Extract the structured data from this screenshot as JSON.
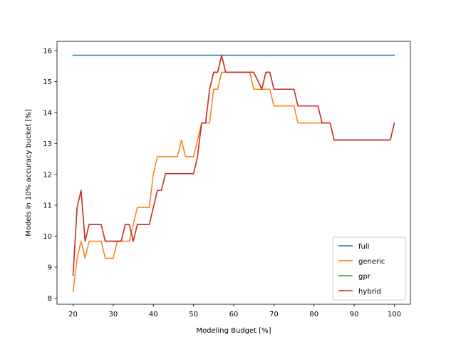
{
  "chart_data": {
    "type": "line",
    "title": "",
    "xlabel": "Modeling Budget [%]",
    "ylabel": "Models in 10% accuracy bucket [%]",
    "xlim": [
      16,
      104
    ],
    "ylim": [
      7.8,
      16.3
    ],
    "xticks": [
      20,
      30,
      40,
      50,
      60,
      70,
      80,
      90,
      100
    ],
    "yticks": [
      8,
      9,
      10,
      11,
      12,
      13,
      14,
      15,
      16
    ],
    "grid": false,
    "legend_position": "bottom-right",
    "x": [
      20,
      21,
      22,
      23,
      24,
      25,
      26,
      27,
      28,
      29,
      30,
      31,
      32,
      33,
      34,
      35,
      36,
      37,
      38,
      39,
      40,
      41,
      42,
      43,
      44,
      45,
      46,
      47,
      48,
      49,
      50,
      51,
      52,
      53,
      54,
      55,
      56,
      57,
      58,
      59,
      60,
      61,
      62,
      63,
      64,
      65,
      66,
      67,
      68,
      69,
      70,
      71,
      72,
      73,
      74,
      75,
      76,
      77,
      78,
      79,
      80,
      81,
      82,
      83,
      84,
      85,
      86,
      87,
      88,
      89,
      90,
      91,
      92,
      93,
      94,
      95,
      96,
      97,
      98,
      99,
      100
    ],
    "series": [
      {
        "name": "full",
        "color": "#1f77b4",
        "values": [
          15.85,
          15.85,
          15.85,
          15.85,
          15.85,
          15.85,
          15.85,
          15.85,
          15.85,
          15.85,
          15.85,
          15.85,
          15.85,
          15.85,
          15.85,
          15.85,
          15.85,
          15.85,
          15.85,
          15.85,
          15.85,
          15.85,
          15.85,
          15.85,
          15.85,
          15.85,
          15.85,
          15.85,
          15.85,
          15.85,
          15.85,
          15.85,
          15.85,
          15.85,
          15.85,
          15.85,
          15.85,
          15.85,
          15.85,
          15.85,
          15.85,
          15.85,
          15.85,
          15.85,
          15.85,
          15.85,
          15.85,
          15.85,
          15.85,
          15.85,
          15.85,
          15.85,
          15.85,
          15.85,
          15.85,
          15.85,
          15.85,
          15.85,
          15.85,
          15.85,
          15.85,
          15.85,
          15.85,
          15.85,
          15.85,
          15.85,
          15.85,
          15.85,
          15.85,
          15.85,
          15.85,
          15.85,
          15.85,
          15.85,
          15.85,
          15.85,
          15.85,
          15.85,
          15.85,
          15.85,
          15.85
        ]
      },
      {
        "name": "generic",
        "color": "#ff7f0e",
        "values": [
          8.2,
          9.29,
          9.84,
          9.29,
          9.84,
          9.84,
          9.84,
          9.84,
          9.29,
          9.29,
          9.29,
          9.84,
          9.84,
          9.84,
          9.84,
          10.38,
          10.93,
          10.93,
          10.93,
          10.93,
          12.02,
          12.57,
          12.57,
          12.57,
          12.57,
          12.57,
          12.57,
          13.11,
          12.57,
          12.57,
          12.57,
          13.11,
          13.66,
          13.66,
          13.66,
          14.75,
          14.75,
          15.3,
          15.3,
          15.3,
          15.3,
          15.3,
          15.3,
          15.3,
          15.3,
          14.75,
          14.75,
          14.75,
          14.75,
          14.75,
          14.21,
          14.21,
          14.21,
          14.21,
          14.21,
          14.21,
          13.66,
          13.66,
          13.66,
          13.66,
          13.66,
          13.66,
          13.66,
          13.66,
          13.66,
          13.11,
          13.11,
          13.11,
          13.11,
          13.11,
          13.11,
          13.11,
          13.11,
          13.11,
          13.11,
          13.11,
          13.11,
          13.11,
          13.11,
          13.11,
          13.66
        ]
      },
      {
        "name": "gpr",
        "color": "#2ca02c",
        "values": [
          8.74,
          10.93,
          11.48,
          9.84,
          10.38,
          10.38,
          10.38,
          10.38,
          9.84,
          9.84,
          9.84,
          9.84,
          9.84,
          10.38,
          10.38,
          9.84,
          10.38,
          10.38,
          10.38,
          10.38,
          10.93,
          11.48,
          11.48,
          12.02,
          12.02,
          12.02,
          12.02,
          12.02,
          12.02,
          12.02,
          12.02,
          12.57,
          13.66,
          13.66,
          14.75,
          15.3,
          15.3,
          15.85,
          15.3,
          15.3,
          15.3,
          15.3,
          15.3,
          15.3,
          15.3,
          15.3,
          15.03,
          14.75,
          15.3,
          15.3,
          14.75,
          14.75,
          14.75,
          14.75,
          14.75,
          14.75,
          14.21,
          14.21,
          14.21,
          14.21,
          14.21,
          14.21,
          13.66,
          13.66,
          13.66,
          13.11,
          13.11,
          13.11,
          13.11,
          13.11,
          13.11,
          13.11,
          13.11,
          13.11,
          13.11,
          13.11,
          13.11,
          13.11,
          13.11,
          13.11,
          13.66
        ]
      },
      {
        "name": "hybrid",
        "color": "#d62728",
        "values": [
          8.74,
          10.93,
          11.48,
          9.84,
          10.38,
          10.38,
          10.38,
          10.38,
          9.84,
          9.84,
          9.84,
          9.84,
          9.84,
          10.38,
          10.38,
          9.84,
          10.38,
          10.38,
          10.38,
          10.38,
          10.93,
          11.48,
          11.48,
          12.02,
          12.02,
          12.02,
          12.02,
          12.02,
          12.02,
          12.02,
          12.02,
          12.57,
          13.66,
          13.66,
          14.75,
          15.3,
          15.3,
          15.85,
          15.3,
          15.3,
          15.3,
          15.3,
          15.3,
          15.3,
          15.3,
          15.3,
          15.03,
          14.75,
          15.3,
          15.3,
          14.75,
          14.75,
          14.75,
          14.75,
          14.75,
          14.75,
          14.21,
          14.21,
          14.21,
          14.21,
          14.21,
          14.21,
          13.66,
          13.66,
          13.66,
          13.11,
          13.11,
          13.11,
          13.11,
          13.11,
          13.11,
          13.11,
          13.11,
          13.11,
          13.11,
          13.11,
          13.11,
          13.11,
          13.11,
          13.11,
          13.66
        ]
      }
    ]
  }
}
